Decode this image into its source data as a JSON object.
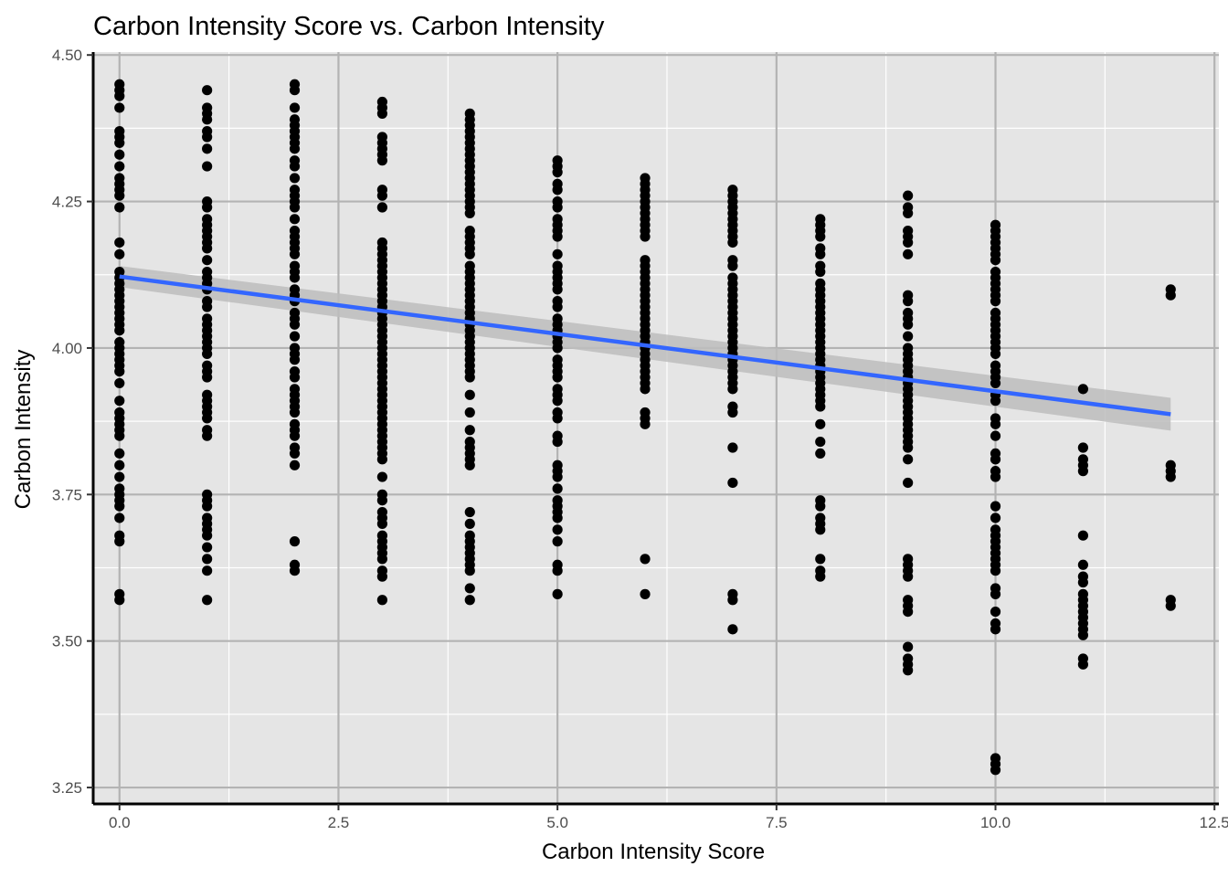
{
  "chart_data": {
    "type": "scatter",
    "title": "Carbon Intensity Score vs. Carbon Intensity",
    "xlabel": "Carbon Intensity Score",
    "ylabel": "Carbon Intensity",
    "xlim": [
      -0.3,
      12.55
    ],
    "ylim": [
      3.222,
      4.505
    ],
    "x_ticks": [
      0,
      2.5,
      5,
      7.5,
      10,
      12.5
    ],
    "x_tick_labels": [
      "0.0",
      "2.5",
      "5.0",
      "7.5",
      "10.0",
      "12.5"
    ],
    "y_ticks": [
      3.25,
      3.5,
      3.75,
      4.0,
      4.25,
      4.5
    ],
    "y_tick_labels": [
      "3.25",
      "3.50",
      "3.75",
      "4.00",
      "4.25",
      "4.50"
    ],
    "grid": true,
    "legend": "none",
    "colors": {
      "panel": "#e5e5e5",
      "grid_major": "#b3b3b3",
      "grid_minor": "#ffffff",
      "points": "#000000",
      "fit_line": "#3366ff",
      "ci_band": "#bdbdbd"
    },
    "series": [
      {
        "type": "points",
        "points_by_x": [
          {
            "x": 0,
            "y": [
              4.45,
              4.44,
              4.43,
              4.41,
              4.37,
              4.36,
              4.35,
              4.33,
              4.31,
              4.29,
              4.28,
              4.27,
              4.26,
              4.24,
              4.18,
              4.16,
              4.13,
              4.12,
              4.11,
              4.1,
              4.09,
              4.08,
              4.07,
              4.06,
              4.05,
              4.04,
              4.03,
              4.01,
              4.0,
              3.99,
              3.98,
              3.97,
              3.96,
              3.94,
              3.91,
              3.89,
              3.88,
              3.87,
              3.86,
              3.85,
              3.82,
              3.8,
              3.78,
              3.76,
              3.75,
              3.74,
              3.73,
              3.71,
              3.68,
              3.67,
              3.58,
              3.57
            ]
          },
          {
            "x": 1,
            "y": [
              4.44,
              4.41,
              4.4,
              4.39,
              4.37,
              4.36,
              4.34,
              4.31,
              4.25,
              4.24,
              4.22,
              4.21,
              4.2,
              4.19,
              4.18,
              4.17,
              4.15,
              4.13,
              4.12,
              4.11,
              4.1,
              4.08,
              4.07,
              4.05,
              4.04,
              4.03,
              4.02,
              4.01,
              4.0,
              3.99,
              3.97,
              3.96,
              3.95,
              3.92,
              3.91,
              3.9,
              3.89,
              3.88,
              3.86,
              3.85,
              3.75,
              3.74,
              3.73,
              3.71,
              3.7,
              3.69,
              3.68,
              3.66,
              3.64,
              3.62,
              3.57
            ]
          },
          {
            "x": 2,
            "y": [
              4.45,
              4.44,
              4.41,
              4.39,
              4.38,
              4.37,
              4.36,
              4.35,
              4.34,
              4.32,
              4.31,
              4.29,
              4.27,
              4.26,
              4.25,
              4.24,
              4.22,
              4.2,
              4.19,
              4.18,
              4.17,
              4.16,
              4.14,
              4.13,
              4.12,
              4.1,
              4.09,
              4.08,
              4.06,
              4.05,
              4.04,
              4.02,
              4.0,
              3.99,
              3.98,
              3.96,
              3.95,
              3.93,
              3.92,
              3.91,
              3.9,
              3.89,
              3.87,
              3.86,
              3.85,
              3.83,
              3.82,
              3.8,
              3.67,
              3.63,
              3.62
            ]
          },
          {
            "x": 3,
            "y": [
              4.42,
              4.41,
              4.4,
              4.36,
              4.35,
              4.34,
              4.33,
              4.32,
              4.27,
              4.26,
              4.24,
              4.18,
              4.17,
              4.16,
              4.15,
              4.14,
              4.13,
              4.12,
              4.11,
              4.1,
              4.09,
              4.08,
              4.07,
              4.06,
              4.05,
              4.04,
              4.03,
              4.02,
              4.01,
              4.0,
              3.99,
              3.98,
              3.97,
              3.96,
              3.95,
              3.94,
              3.93,
              3.92,
              3.91,
              3.9,
              3.89,
              3.88,
              3.87,
              3.86,
              3.85,
              3.84,
              3.83,
              3.82,
              3.81,
              3.78,
              3.75,
              3.74,
              3.72,
              3.71,
              3.7,
              3.68,
              3.67,
              3.66,
              3.65,
              3.64,
              3.62,
              3.61,
              3.57
            ]
          },
          {
            "x": 4,
            "y": [
              4.4,
              4.39,
              4.38,
              4.37,
              4.36,
              4.35,
              4.34,
              4.33,
              4.32,
              4.31,
              4.3,
              4.29,
              4.28,
              4.27,
              4.26,
              4.25,
              4.24,
              4.23,
              4.2,
              4.19,
              4.18,
              4.17,
              4.16,
              4.14,
              4.13,
              4.12,
              4.11,
              4.1,
              4.09,
              4.08,
              4.07,
              4.06,
              4.05,
              4.04,
              4.03,
              4.02,
              4.01,
              4.0,
              3.99,
              3.98,
              3.97,
              3.96,
              3.95,
              3.92,
              3.89,
              3.86,
              3.84,
              3.83,
              3.82,
              3.81,
              3.8,
              3.72,
              3.7,
              3.68,
              3.67,
              3.66,
              3.65,
              3.64,
              3.63,
              3.62,
              3.59,
              3.57
            ]
          },
          {
            "x": 5,
            "y": [
              4.32,
              4.31,
              4.3,
              4.28,
              4.27,
              4.25,
              4.24,
              4.22,
              4.21,
              4.2,
              4.19,
              4.16,
              4.14,
              4.13,
              4.12,
              4.11,
              4.1,
              4.08,
              4.07,
              4.05,
              4.04,
              4.03,
              4.02,
              4.01,
              4.0,
              3.98,
              3.97,
              3.96,
              3.95,
              3.93,
              3.92,
              3.91,
              3.89,
              3.88,
              3.85,
              3.84,
              3.8,
              3.79,
              3.78,
              3.76,
              3.74,
              3.73,
              3.72,
              3.71,
              3.69,
              3.67,
              3.63,
              3.62,
              3.58
            ]
          },
          {
            "x": 6,
            "y": [
              4.29,
              4.28,
              4.27,
              4.26,
              4.25,
              4.24,
              4.23,
              4.22,
              4.21,
              4.2,
              4.19,
              4.15,
              4.14,
              4.13,
              4.12,
              4.11,
              4.1,
              4.09,
              4.08,
              4.07,
              4.06,
              4.05,
              4.04,
              4.03,
              4.02,
              4.01,
              4.0,
              3.99,
              3.98,
              3.97,
              3.96,
              3.95,
              3.94,
              3.93,
              3.89,
              3.88,
              3.87,
              3.64,
              3.58
            ]
          },
          {
            "x": 7,
            "y": [
              4.27,
              4.26,
              4.25,
              4.24,
              4.23,
              4.22,
              4.21,
              4.2,
              4.19,
              4.18,
              4.15,
              4.14,
              4.12,
              4.11,
              4.1,
              4.09,
              4.08,
              4.07,
              4.06,
              4.05,
              4.04,
              4.03,
              4.02,
              4.01,
              4.0,
              3.99,
              3.98,
              3.97,
              3.96,
              3.95,
              3.94,
              3.93,
              3.9,
              3.89,
              3.83,
              3.77,
              3.58,
              3.57,
              3.52
            ]
          },
          {
            "x": 8,
            "y": [
              4.22,
              4.21,
              4.2,
              4.19,
              4.17,
              4.16,
              4.14,
              4.13,
              4.11,
              4.1,
              4.09,
              4.08,
              4.07,
              4.06,
              4.05,
              4.04,
              4.03,
              4.02,
              4.01,
              4.0,
              3.99,
              3.98,
              3.97,
              3.96,
              3.95,
              3.94,
              3.93,
              3.92,
              3.91,
              3.9,
              3.87,
              3.84,
              3.82,
              3.74,
              3.73,
              3.71,
              3.7,
              3.69,
              3.64,
              3.62,
              3.61
            ]
          },
          {
            "x": 9,
            "y": [
              4.26,
              4.24,
              4.23,
              4.2,
              4.19,
              4.18,
              4.16,
              4.09,
              4.08,
              4.06,
              4.05,
              4.04,
              4.02,
              4.0,
              3.99,
              3.98,
              3.97,
              3.96,
              3.95,
              3.94,
              3.93,
              3.92,
              3.91,
              3.9,
              3.89,
              3.88,
              3.87,
              3.86,
              3.85,
              3.84,
              3.83,
              3.81,
              3.77,
              3.64,
              3.63,
              3.62,
              3.61,
              3.57,
              3.56,
              3.55,
              3.49,
              3.47,
              3.46,
              3.45
            ]
          },
          {
            "x": 10,
            "y": [
              4.21,
              4.2,
              4.19,
              4.18,
              4.17,
              4.16,
              4.15,
              4.13,
              4.12,
              4.11,
              4.1,
              4.09,
              4.08,
              4.06,
              4.05,
              4.04,
              4.03,
              4.02,
              4.01,
              4.0,
              3.99,
              3.97,
              3.96,
              3.95,
              3.94,
              3.92,
              3.91,
              3.88,
              3.87,
              3.85,
              3.82,
              3.81,
              3.79,
              3.78,
              3.73,
              3.71,
              3.69,
              3.68,
              3.67,
              3.66,
              3.65,
              3.64,
              3.63,
              3.62,
              3.59,
              3.58,
              3.55,
              3.53,
              3.52,
              3.3,
              3.29,
              3.28
            ]
          },
          {
            "x": 11,
            "y": [
              3.93,
              3.83,
              3.81,
              3.8,
              3.79,
              3.68,
              3.63,
              3.61,
              3.6,
              3.58,
              3.57,
              3.56,
              3.55,
              3.54,
              3.53,
              3.52,
              3.51,
              3.47,
              3.46
            ]
          },
          {
            "x": 12,
            "y": [
              4.1,
              4.09,
              3.8,
              3.79,
              3.78,
              3.57,
              3.56
            ]
          }
        ]
      },
      {
        "type": "linear_fit",
        "x": [
          0,
          12
        ],
        "y": [
          4.122,
          3.887
        ],
        "ci_lower": [
          4.104,
          3.859
        ],
        "ci_upper": [
          4.14,
          3.915
        ]
      }
    ]
  }
}
